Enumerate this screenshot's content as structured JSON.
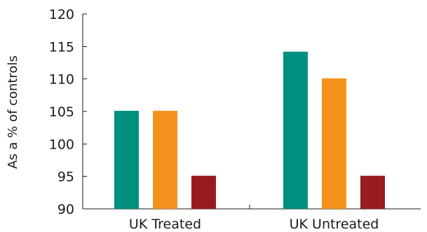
{
  "chart_data": {
    "type": "bar",
    "title": "",
    "xlabel": "",
    "ylabel": "As a % of controls",
    "categories": [
      "UK Treated",
      "UK Untreated"
    ],
    "series": [
      {
        "values": [
          105.1,
          114.2
        ],
        "color": "#009080"
      },
      {
        "values": [
          105.1,
          110.1
        ],
        "color": "#f5921e"
      },
      {
        "values": [
          95.1,
          95.1
        ],
        "color": "#9a1b1f"
      }
    ],
    "ylim": [
      90,
      120
    ],
    "yticks": [
      90,
      95,
      100,
      105,
      110,
      115,
      120
    ],
    "grid": false,
    "legend": "none"
  }
}
